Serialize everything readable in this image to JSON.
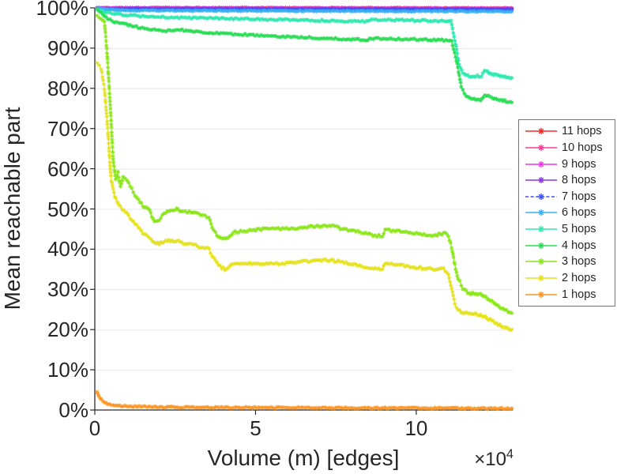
{
  "figure": {
    "background": "#ffffff",
    "x_multiplier_base": "×10",
    "x_multiplier_exp": "4"
  },
  "chart_data": {
    "type": "line",
    "title": "",
    "xlabel": "Volume (m) [edges]",
    "ylabel": "Mean reachable part",
    "xlim": [
      0,
      13
    ],
    "ylim": [
      0,
      100
    ],
    "x_unit_multiplier": 10000,
    "xticks": [
      0,
      5,
      10
    ],
    "xticklabels": [
      "0",
      "5",
      "10"
    ],
    "yticks": [
      0,
      10,
      20,
      30,
      40,
      50,
      60,
      70,
      80,
      90,
      100
    ],
    "yticklabels": [
      "0%",
      "10%",
      "20%",
      "30%",
      "40%",
      "50%",
      "60%",
      "70%",
      "80%",
      "90%",
      "100%"
    ],
    "grid": "horizontal",
    "legend_position": "right-outside",
    "marker": "asterisk",
    "series": [
      {
        "name": "11 hops",
        "color": "#f22b2b",
        "dashed": false,
        "jitter": 0.1,
        "points": [
          [
            0.07,
            100.0
          ],
          [
            6,
            100.0
          ],
          [
            12.97,
            99.95
          ]
        ]
      },
      {
        "name": "10 hops",
        "color": "#f73d97",
        "dashed": false,
        "jitter": 0.1,
        "points": [
          [
            0.07,
            99.97
          ],
          [
            6,
            99.95
          ],
          [
            12.97,
            99.9
          ]
        ]
      },
      {
        "name": "9 hops",
        "color": "#ea38ea",
        "dashed": false,
        "jitter": 0.1,
        "points": [
          [
            0.07,
            99.95
          ],
          [
            6,
            99.9
          ],
          [
            12.97,
            99.85
          ]
        ]
      },
      {
        "name": "8 hops",
        "color": "#8c33e8",
        "dashed": false,
        "jitter": 0.1,
        "points": [
          [
            0.07,
            99.9
          ],
          [
            6,
            99.8
          ],
          [
            12.97,
            99.75
          ]
        ]
      },
      {
        "name": "7 hops",
        "color": "#3f51f0",
        "dashed": true,
        "jitter": 0.1,
        "points": [
          [
            0.07,
            99.7
          ],
          [
            6,
            99.6
          ],
          [
            12.97,
            99.5
          ]
        ]
      },
      {
        "name": "6 hops",
        "color": "#38aef5",
        "dashed": false,
        "jitter": 0.12,
        "points": [
          [
            0.07,
            99.9
          ],
          [
            0.4,
            99.6
          ],
          [
            1.0,
            99.4
          ],
          [
            3,
            99.3
          ],
          [
            6,
            99.25
          ],
          [
            9,
            99.2
          ],
          [
            11,
            99.15
          ],
          [
            12,
            99.1
          ],
          [
            12.97,
            99.1
          ]
        ]
      },
      {
        "name": "5 hops",
        "color": "#2ee8b0",
        "dashed": false,
        "jitter": 0.22,
        "points": [
          [
            0.07,
            99.8
          ],
          [
            0.3,
            99.0
          ],
          [
            0.6,
            98.5
          ],
          [
            1.0,
            98.2
          ],
          [
            1.6,
            97.9
          ],
          [
            2.5,
            97.6
          ],
          [
            3.5,
            97.4
          ],
          [
            4.5,
            97.3
          ],
          [
            5.5,
            97.1
          ],
          [
            6.5,
            96.95
          ],
          [
            7.5,
            96.8
          ],
          [
            8.0,
            96.7
          ],
          [
            8.45,
            96.6
          ],
          [
            8.55,
            97.1
          ],
          [
            9.2,
            97.0
          ],
          [
            10.0,
            96.9
          ],
          [
            10.8,
            96.8
          ],
          [
            11.08,
            96.7
          ],
          [
            11.2,
            92.0
          ],
          [
            11.33,
            86.0
          ],
          [
            11.45,
            83.8
          ],
          [
            11.6,
            83.2
          ],
          [
            11.75,
            82.9
          ],
          [
            11.9,
            83.1
          ],
          [
            12.02,
            82.8
          ],
          [
            12.12,
            84.5
          ],
          [
            12.25,
            84.0
          ],
          [
            12.4,
            83.5
          ],
          [
            12.6,
            83.1
          ],
          [
            12.8,
            82.8
          ],
          [
            12.97,
            82.6
          ]
        ]
      },
      {
        "name": "4 hops",
        "color": "#2bdc55",
        "dashed": false,
        "jitter": 0.22,
        "points": [
          [
            0.07,
            99.6
          ],
          [
            0.2,
            98.8
          ],
          [
            0.35,
            97.6
          ],
          [
            0.6,
            96.6
          ],
          [
            0.9,
            96.1
          ],
          [
            1.1,
            95.7
          ],
          [
            1.35,
            95.2
          ],
          [
            1.6,
            94.9
          ],
          [
            1.85,
            94.5
          ],
          [
            2.1,
            94.2
          ],
          [
            2.35,
            94.5
          ],
          [
            2.6,
            94.6
          ],
          [
            2.9,
            94.3
          ],
          [
            3.3,
            94.0
          ],
          [
            3.8,
            93.7
          ],
          [
            4.3,
            93.5
          ],
          [
            4.8,
            93.3
          ],
          [
            5.3,
            93.1
          ],
          [
            5.8,
            92.9
          ],
          [
            6.3,
            92.7
          ],
          [
            6.8,
            92.55
          ],
          [
            7.3,
            92.4
          ],
          [
            7.8,
            92.25
          ],
          [
            8.2,
            92.1
          ],
          [
            8.45,
            92.0
          ],
          [
            8.6,
            92.4
          ],
          [
            9.2,
            92.3
          ],
          [
            10.0,
            92.15
          ],
          [
            10.8,
            92.0
          ],
          [
            11.1,
            91.8
          ],
          [
            11.25,
            87.0
          ],
          [
            11.4,
            80.5
          ],
          [
            11.55,
            78.0
          ],
          [
            11.7,
            77.5
          ],
          [
            11.85,
            77.2
          ],
          [
            12.0,
            77.0
          ],
          [
            12.13,
            78.4
          ],
          [
            12.28,
            77.9
          ],
          [
            12.45,
            77.5
          ],
          [
            12.65,
            77.1
          ],
          [
            12.8,
            76.8
          ],
          [
            12.97,
            76.5
          ]
        ]
      },
      {
        "name": "3 hops",
        "color": "#8ce61c",
        "dashed": false,
        "jitter": 0.3,
        "points": [
          [
            0.07,
            97.8
          ],
          [
            0.2,
            97.2
          ],
          [
            0.3,
            96.5
          ],
          [
            0.38,
            89.0
          ],
          [
            0.48,
            76.0
          ],
          [
            0.57,
            62.3
          ],
          [
            0.65,
            57.3
          ],
          [
            0.72,
            59.0
          ],
          [
            0.8,
            55.5
          ],
          [
            0.88,
            57.8
          ],
          [
            1.0,
            57.2
          ],
          [
            1.15,
            55.0
          ],
          [
            1.3,
            52.8
          ],
          [
            1.5,
            50.7
          ],
          [
            1.7,
            49.8
          ],
          [
            1.85,
            46.8
          ],
          [
            2.0,
            47.3
          ],
          [
            2.15,
            48.8
          ],
          [
            2.35,
            49.8
          ],
          [
            2.55,
            49.9
          ],
          [
            2.75,
            49.4
          ],
          [
            3.0,
            49.1
          ],
          [
            3.3,
            48.6
          ],
          [
            3.55,
            48.0
          ],
          [
            3.65,
            45.5
          ],
          [
            3.8,
            43.5
          ],
          [
            3.95,
            42.7
          ],
          [
            4.1,
            42.4
          ],
          [
            4.3,
            44.3
          ],
          [
            4.6,
            44.4
          ],
          [
            5.0,
            44.8
          ],
          [
            5.4,
            45.1
          ],
          [
            5.9,
            45.1
          ],
          [
            6.3,
            45.3
          ],
          [
            6.7,
            45.6
          ],
          [
            7.1,
            45.9
          ],
          [
            7.4,
            45.7
          ],
          [
            7.7,
            45.1
          ],
          [
            8.0,
            44.6
          ],
          [
            8.3,
            44.1
          ],
          [
            8.6,
            43.6
          ],
          [
            8.95,
            43.1
          ],
          [
            9.03,
            44.7
          ],
          [
            9.35,
            44.5
          ],
          [
            9.7,
            44.2
          ],
          [
            10.0,
            43.9
          ],
          [
            10.3,
            43.6
          ],
          [
            10.55,
            43.4
          ],
          [
            10.75,
            43.8
          ],
          [
            10.9,
            44.0
          ],
          [
            11.0,
            43.4
          ],
          [
            11.1,
            40.5
          ],
          [
            11.2,
            36.0
          ],
          [
            11.3,
            32.8
          ],
          [
            11.45,
            30.2
          ],
          [
            11.6,
            29.2
          ],
          [
            11.8,
            28.9
          ],
          [
            12.0,
            28.7
          ],
          [
            12.15,
            28.2
          ],
          [
            12.3,
            27.2
          ],
          [
            12.45,
            26.3
          ],
          [
            12.6,
            25.5
          ],
          [
            12.75,
            24.8
          ],
          [
            12.97,
            24.1
          ]
        ]
      },
      {
        "name": "2 hops",
        "color": "#e5e221",
        "dashed": false,
        "jitter": 0.3,
        "points": [
          [
            0.07,
            86.5
          ],
          [
            0.2,
            84.8
          ],
          [
            0.3,
            80.0
          ],
          [
            0.4,
            70.0
          ],
          [
            0.5,
            58.0
          ],
          [
            0.57,
            54.8
          ],
          [
            0.65,
            52.5
          ],
          [
            0.75,
            51.0
          ],
          [
            0.85,
            50.0
          ],
          [
            1.0,
            48.8
          ],
          [
            1.15,
            47.2
          ],
          [
            1.3,
            45.8
          ],
          [
            1.5,
            44.0
          ],
          [
            1.7,
            43.0
          ],
          [
            1.85,
            41.8
          ],
          [
            2.0,
            41.5
          ],
          [
            2.15,
            42.0
          ],
          [
            2.35,
            42.2
          ],
          [
            2.55,
            42.0
          ],
          [
            2.75,
            41.6
          ],
          [
            3.0,
            41.2
          ],
          [
            3.3,
            40.6
          ],
          [
            3.55,
            40.0
          ],
          [
            3.65,
            38.2
          ],
          [
            3.8,
            36.5
          ],
          [
            3.95,
            35.3
          ],
          [
            4.1,
            34.8
          ],
          [
            4.3,
            36.3
          ],
          [
            4.6,
            36.6
          ],
          [
            5.0,
            36.5
          ],
          [
            5.4,
            36.3
          ],
          [
            5.9,
            36.5
          ],
          [
            6.3,
            36.8
          ],
          [
            6.7,
            37.1
          ],
          [
            7.1,
            37.4
          ],
          [
            7.4,
            37.2
          ],
          [
            7.7,
            36.7
          ],
          [
            8.0,
            36.2
          ],
          [
            8.3,
            35.7
          ],
          [
            8.6,
            35.3
          ],
          [
            8.95,
            34.9
          ],
          [
            9.03,
            36.3
          ],
          [
            9.35,
            36.1
          ],
          [
            9.7,
            35.8
          ],
          [
            10.0,
            35.5
          ],
          [
            10.3,
            35.2
          ],
          [
            10.55,
            35.0
          ],
          [
            10.75,
            35.2
          ],
          [
            10.85,
            35.4
          ],
          [
            11.0,
            33.5
          ],
          [
            11.1,
            30.0
          ],
          [
            11.2,
            26.5
          ],
          [
            11.3,
            24.8
          ],
          [
            11.45,
            24.2
          ],
          [
            11.6,
            24.1
          ],
          [
            11.8,
            24.0
          ],
          [
            12.0,
            23.6
          ],
          [
            12.15,
            23.2
          ],
          [
            12.3,
            22.4
          ],
          [
            12.45,
            21.6
          ],
          [
            12.6,
            21.0
          ],
          [
            12.75,
            20.5
          ],
          [
            12.97,
            20.0
          ]
        ]
      },
      {
        "name": "1 hops",
        "color": "#fb9627",
        "dashed": false,
        "jitter": 0.18,
        "points": [
          [
            0.07,
            4.6
          ],
          [
            0.12,
            3.6
          ],
          [
            0.2,
            2.6
          ],
          [
            0.3,
            1.9
          ],
          [
            0.45,
            1.4
          ],
          [
            0.7,
            1.1
          ],
          [
            1.0,
            0.9
          ],
          [
            1.5,
            0.8
          ],
          [
            2.5,
            0.7
          ],
          [
            4.0,
            0.6
          ],
          [
            6.0,
            0.6
          ],
          [
            8.0,
            0.5
          ],
          [
            10.0,
            0.5
          ],
          [
            12.0,
            0.4
          ],
          [
            12.97,
            0.4
          ]
        ]
      }
    ]
  }
}
